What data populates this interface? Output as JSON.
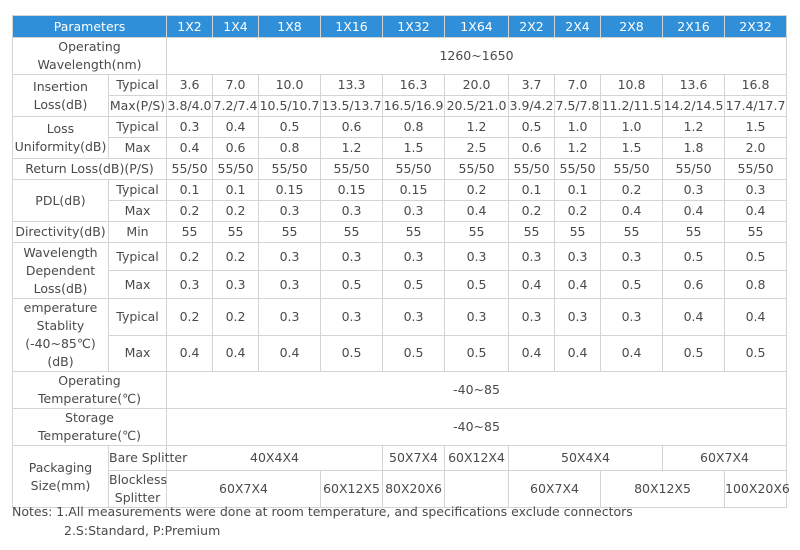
{
  "header": {
    "parameters": "Parameters",
    "cols": [
      "1X2",
      "1X4",
      "1X8",
      "1X16",
      "1X32",
      "1X64",
      "2X2",
      "2X4",
      "2X8",
      "2X16",
      "2X32"
    ]
  },
  "operating_wavelength": {
    "label": "Operating Wavelength(nm)",
    "value": "1260~1650"
  },
  "insertion_loss": {
    "label": "Insertion Loss(dB)",
    "typical_label": "Typical",
    "typical": [
      "3.6",
      "7.0",
      "10.0",
      "13.3",
      "16.3",
      "20.0",
      "3.7",
      "7.0",
      "10.8",
      "13.6",
      "16.8"
    ],
    "max_label": "Max(P/S)",
    "max": [
      "3.8/4.0",
      "7.2/7.4",
      "10.5/10.7",
      "13.5/13.7",
      "16.5/16.9",
      "20.5/21.0",
      "3.9/4.2",
      "7.5/7.8",
      "11.2/11.5",
      "14.2/14.5",
      "17.4/17.7"
    ]
  },
  "loss_uniformity": {
    "label": "Loss Uniformity(dB)",
    "typical_label": "Typical",
    "typical": [
      "0.3",
      "0.4",
      "0.5",
      "0.6",
      "0.8",
      "1.2",
      "0.5",
      "1.0",
      "1.0",
      "1.2",
      "1.5"
    ],
    "max_label": "Max",
    "max": [
      "0.4",
      "0.6",
      "0.8",
      "1.2",
      "1.5",
      "2.5",
      "0.6",
      "1.2",
      "1.5",
      "1.8",
      "2.0"
    ]
  },
  "return_loss": {
    "label": "Return Loss(dB)(P/S)",
    "values": [
      "55/50",
      "55/50",
      "55/50",
      "55/50",
      "55/50",
      "55/50",
      "55/50",
      "55/50",
      "55/50",
      "55/50",
      "55/50"
    ]
  },
  "pdl": {
    "label": "PDL(dB)",
    "typical_label": "Typical",
    "typical": [
      "0.1",
      "0.1",
      "0.15",
      "0.15",
      "0.15",
      "0.2",
      "0.1",
      "0.1",
      "0.2",
      "0.3",
      "0.3"
    ],
    "max_label": "Max",
    "max": [
      "0.2",
      "0.2",
      "0.3",
      "0.3",
      "0.3",
      "0.4",
      "0.2",
      "0.2",
      "0.4",
      "0.4",
      "0.4"
    ]
  },
  "directivity": {
    "label": "Directivity(dB)",
    "min_label": "Min",
    "values": [
      "55",
      "55",
      "55",
      "55",
      "55",
      "55",
      "55",
      "55",
      "55",
      "55",
      "55"
    ]
  },
  "wavelength_dependent_loss": {
    "label": "Wavelength Dependent Loss(dB)",
    "typical_label": "Typical",
    "typical": [
      "0.2",
      "0.2",
      "0.3",
      "0.3",
      "0.3",
      "0.3",
      "0.3",
      "0.3",
      "0.3",
      "0.5",
      "0.5"
    ],
    "max_label": "Max",
    "max": [
      "0.3",
      "0.3",
      "0.3",
      "0.5",
      "0.5",
      "0.5",
      "0.4",
      "0.4",
      "0.5",
      "0.6",
      "0.8"
    ]
  },
  "temperature_stability": {
    "label": "emperature Stablity (-40~85℃)(dB)",
    "typical_label": "Typical",
    "typical": [
      "0.2",
      "0.2",
      "0.3",
      "0.3",
      "0.3",
      "0.3",
      "0.3",
      "0.3",
      "0.3",
      "0.4",
      "0.4"
    ],
    "max_label": "Max",
    "max": [
      "0.4",
      "0.4",
      "0.4",
      "0.5",
      "0.5",
      "0.5",
      "0.4",
      "0.4",
      "0.4",
      "0.5",
      "0.5"
    ]
  },
  "operating_temperature": {
    "label": "Operating Temperature(℃)",
    "value": "-40~85"
  },
  "storage_temperature": {
    "label": "Storage Temperature(℃)",
    "value": "-40~85"
  },
  "packaging": {
    "label": "Packaging Size(mm)",
    "bare_label": "Bare Splitter",
    "bare": [
      "40X4X4",
      "50X7X4",
      "60X12X4",
      "50X4X4",
      "60X7X4"
    ],
    "blockless_label": "Blockless Splitter",
    "blockless": [
      "60X7X4",
      "60X12X5",
      "80X20X6",
      "",
      "60X7X4",
      "80X12X5",
      "100X20X6"
    ]
  },
  "notes": {
    "line1": "Notes: 1.All measurements were done at room temperature, and specifications exclude connectors",
    "line2": "2.S:Standard, P:Premium"
  }
}
